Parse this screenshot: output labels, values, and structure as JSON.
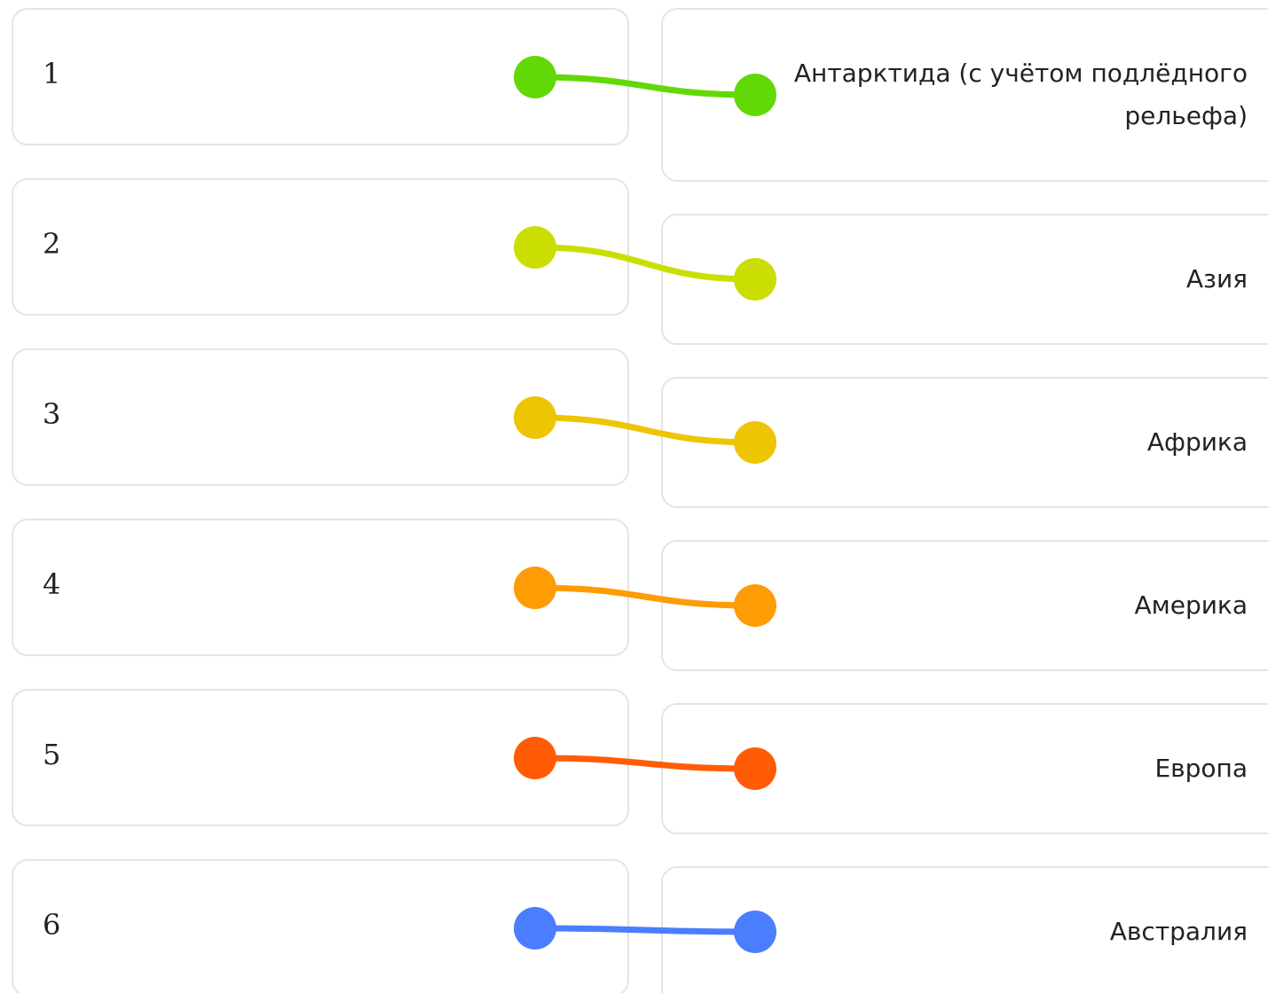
{
  "left_items": [
    {
      "label": "1"
    },
    {
      "label": "2"
    },
    {
      "label": "3"
    },
    {
      "label": "4"
    },
    {
      "label": "5"
    },
    {
      "label": "6"
    }
  ],
  "right_items": [
    {
      "label": "Антарктида (с учётом подлёдного рельефа)"
    },
    {
      "label": "Азия"
    },
    {
      "label": "Африка"
    },
    {
      "label": "Америка"
    },
    {
      "label": "Европа"
    },
    {
      "label": "Австралия"
    }
  ],
  "connections": [
    {
      "from": 0,
      "to": 0,
      "color": "#62d907"
    },
    {
      "from": 1,
      "to": 1,
      "color": "#cbde03"
    },
    {
      "from": 2,
      "to": 2,
      "color": "#eec503"
    },
    {
      "from": 3,
      "to": 3,
      "color": "#fd9c05"
    },
    {
      "from": 4,
      "to": 4,
      "color": "#ff5c05"
    },
    {
      "from": 5,
      "to": 5,
      "color": "#4a7eff"
    }
  ]
}
